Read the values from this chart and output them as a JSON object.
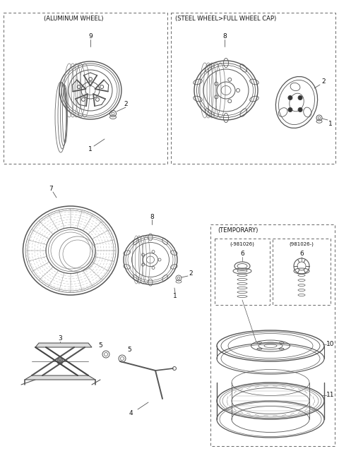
{
  "bg_color": "#ffffff",
  "line_color": "#444444",
  "text_color": "#111111",
  "fig_width": 4.8,
  "fig_height": 6.39,
  "fig_dpi": 100,
  "alum_label": "(ALUMINUM WHEEL)",
  "steel_label": "(STEEL WHEEL>FULL WHEEL CAP)",
  "temp_label": "(TEMPORARY)",
  "temp_sub1": "(-981026)",
  "temp_sub2": "(981026-)",
  "font_size_label": 6.0,
  "font_size_part": 6.5
}
